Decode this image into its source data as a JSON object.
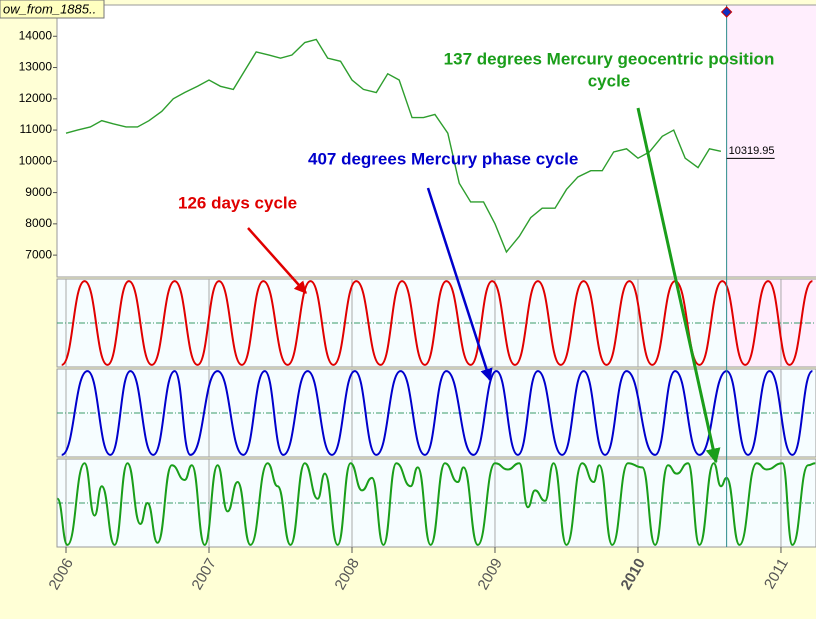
{
  "title_box": "ow_from_1885..",
  "chart_data": [
    {
      "type": "line",
      "color": "#2e9e2e",
      "xlim": [
        2005.937,
        2011.245
      ],
      "ylim": [
        6300,
        15000
      ],
      "yticks": [
        7000,
        8000,
        9000,
        10000,
        11000,
        12000,
        13000,
        14000
      ],
      "x": [
        2006.0,
        2006.08,
        2006.17,
        2006.25,
        2006.33,
        2006.42,
        2006.5,
        2006.58,
        2006.67,
        2006.75,
        2006.83,
        2006.92,
        2007.0,
        2007.08,
        2007.17,
        2007.25,
        2007.33,
        2007.42,
        2007.5,
        2007.58,
        2007.67,
        2007.75,
        2007.83,
        2007.92,
        2008.0,
        2008.08,
        2008.17,
        2008.25,
        2008.33,
        2008.42,
        2008.5,
        2008.58,
        2008.67,
        2008.75,
        2008.83,
        2008.92,
        2009.0,
        2009.08,
        2009.17,
        2009.25,
        2009.33,
        2009.42,
        2009.5,
        2009.58,
        2009.67,
        2009.75,
        2009.83,
        2009.92,
        2010.0,
        2010.08,
        2010.17,
        2010.25,
        2010.33,
        2010.42,
        2010.5,
        2010.58
      ],
      "values": [
        10900,
        11000,
        11100,
        11300,
        11200,
        11100,
        11100,
        11300,
        11600,
        12000,
        12200,
        12400,
        12600,
        12400,
        12300,
        12900,
        13500,
        13400,
        13300,
        13400,
        13800,
        13900,
        13300,
        13200,
        12600,
        12300,
        12200,
        12800,
        12600,
        11400,
        11400,
        11500,
        10900,
        9300,
        8700,
        8700,
        8000,
        7100,
        7600,
        8200,
        8500,
        8500,
        9100,
        9500,
        9700,
        9700,
        10300,
        10400,
        10100,
        10300,
        10800,
        11000,
        10100,
        9800,
        10400,
        10319.95
      ],
      "last_value": 10319.95,
      "cursor_x": 2010.62
    },
    {
      "type": "line",
      "color": "#e00000",
      "label_lines": [
        "126 days cycle"
      ],
      "xlim": [
        2005.937,
        2011.245
      ],
      "ylim": [
        -1.05,
        1.05
      ],
      "x": [
        2005.97,
        2006.13,
        2006.29,
        2006.44,
        2006.6,
        2006.76,
        2006.92,
        2007.07,
        2007.23,
        2007.38,
        2007.55,
        2007.71,
        2007.87,
        2008.03,
        2008.2,
        2008.35,
        2008.51,
        2008.66,
        2008.83,
        2008.98,
        2009.14,
        2009.3,
        2009.46,
        2009.62,
        2009.78,
        2009.94,
        2010.1,
        2010.26,
        2010.43,
        2010.59,
        2010.75,
        2010.91,
        2011.06,
        2011.22
      ],
      "values": [
        -1,
        1,
        -1,
        1,
        -1,
        1,
        -1,
        1,
        -1,
        1,
        -1,
        1,
        -1,
        1,
        -1,
        1,
        -1,
        1,
        -1,
        1,
        -1,
        1,
        -1,
        1,
        -1,
        1,
        -1,
        1,
        -1,
        1,
        -1,
        1,
        -1,
        1
      ]
    },
    {
      "type": "line",
      "color": "#0000cc",
      "label_lines": [
        "407 degrees Mercury phase cycle"
      ],
      "xlim": [
        2005.937,
        2011.245
      ],
      "ylim": [
        -1.05,
        1.05
      ],
      "x": [
        2005.97,
        2006.15,
        2006.31,
        2006.45,
        2006.61,
        2006.76,
        2006.87,
        2007.06,
        2007.24,
        2007.39,
        2007.52,
        2007.69,
        2007.86,
        2008.02,
        2008.17,
        2008.34,
        2008.51,
        2008.66,
        2008.85,
        2009.01,
        2009.16,
        2009.3,
        2009.47,
        2009.62,
        2009.77,
        2009.92,
        2010.12,
        2010.26,
        2010.43,
        2010.62,
        2010.77,
        2010.92,
        2011.08,
        2011.22
      ],
      "values": [
        -1,
        1,
        -1,
        1,
        -1,
        1,
        -1,
        1,
        -1,
        1,
        -1,
        1,
        -1,
        1,
        -1,
        1,
        -1,
        1,
        -1,
        1,
        -1,
        1,
        -1,
        1,
        -1,
        1,
        -1,
        1,
        -1,
        1,
        -1,
        1,
        -1,
        1
      ]
    },
    {
      "type": "line",
      "color": "#1a9e1a",
      "label_lines": [
        "137 degrees Mercury geocentric position",
        "cycle"
      ],
      "xlim": [
        2005.937,
        2011.245
      ],
      "ylim": [
        -1.05,
        1.05
      ],
      "xticks": [
        2006,
        2007,
        2008,
        2009,
        2010,
        2011
      ],
      "x": [
        2005.94,
        2006.01,
        2006.13,
        2006.2,
        2006.25,
        2006.34,
        2006.43,
        2006.52,
        2006.57,
        2006.64,
        2006.74,
        2006.83,
        2006.88,
        2006.97,
        2007.06,
        2007.13,
        2007.2,
        2007.29,
        2007.41,
        2007.48,
        2007.57,
        2007.67,
        2007.76,
        2007.81,
        2007.9,
        2007.99,
        2008.07,
        2008.14,
        2008.22,
        2008.31,
        2008.41,
        2008.46,
        2008.55,
        2008.65,
        2008.74,
        2008.78,
        2008.88,
        2009.0,
        2009.09,
        2009.17,
        2009.23,
        2009.28,
        2009.35,
        2009.41,
        2009.5,
        2009.61,
        2009.69,
        2009.73,
        2009.82,
        2009.93,
        2010.03,
        2010.12,
        2010.21,
        2010.27,
        2010.35,
        2010.43,
        2010.53,
        2010.58,
        2010.62,
        2010.71,
        2010.83,
        2010.9,
        2011.01,
        2011.08,
        2011.19,
        2011.24
      ],
      "values": [
        0.1,
        -1,
        0.95,
        -0.3,
        0.4,
        -1,
        0.95,
        -0.5,
        0,
        -0.95,
        0.9,
        0.55,
        0.9,
        -1,
        0.9,
        -0.2,
        0.5,
        -1,
        0.95,
        0.4,
        -1,
        0.95,
        0.1,
        0.7,
        -1,
        0.95,
        0.3,
        0.6,
        -1,
        0.95,
        0.4,
        0.85,
        -1,
        0.95,
        0.5,
        0.85,
        -1,
        0.95,
        0.8,
        0.95,
        -0.1,
        0.3,
        0.05,
        0.95,
        -1,
        0.95,
        0.5,
        0.9,
        -1,
        0.95,
        0.85,
        -1,
        0.9,
        0.7,
        0.95,
        -1,
        0.95,
        0.4,
        0.6,
        -1,
        0.95,
        0.8,
        0.95,
        -1,
        0.9,
        0.95
      ]
    }
  ]
}
